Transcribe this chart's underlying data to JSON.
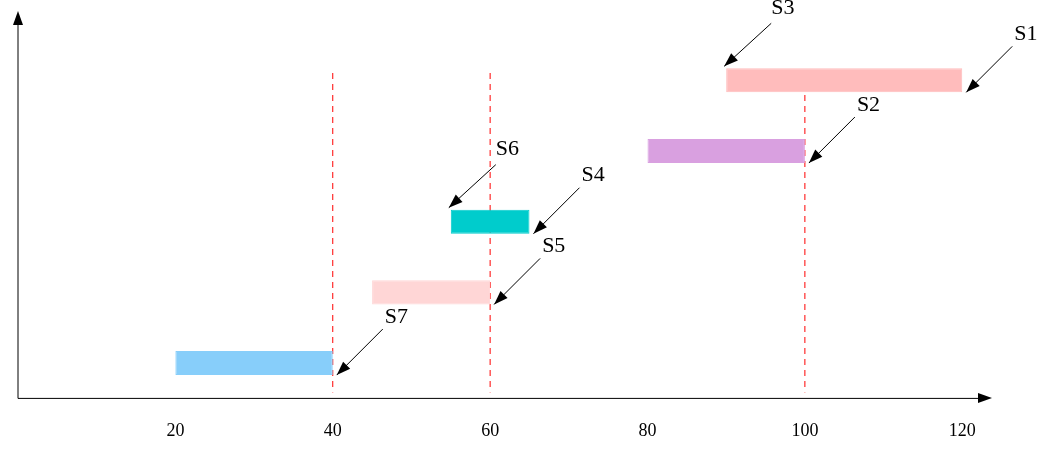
{
  "chart_data": {
    "type": "bar",
    "orientation": "horizontal",
    "categories": [
      null,
      null,
      null,
      null,
      null
    ],
    "base": [
      90,
      80,
      55,
      45,
      20
    ],
    "values": [
      30,
      20,
      10,
      15,
      20
    ],
    "colors": [
      "#ffbcbc",
      "#d9a0e0",
      "#00cccc",
      "#ffd6d6",
      "#87cefa"
    ],
    "xlim": [
      0,
      122
    ],
    "xticks": [
      20,
      40,
      60,
      80,
      100,
      120
    ],
    "tick_labels": "x",
    "ref_lines": [
      {
        "axis": "x",
        "value": 40,
        "color": "#ff0000",
        "line_style": "dashed"
      },
      {
        "axis": "x",
        "value": 60,
        "color": "#ff0000",
        "line_style": "dashed"
      },
      {
        "axis": "x",
        "value": 100,
        "color": "#ff0000",
        "line_style": "dashed"
      }
    ],
    "annotations": [
      "S1",
      "S2",
      "S3",
      "S4",
      "S5",
      "S6",
      "S7"
    ]
  }
}
